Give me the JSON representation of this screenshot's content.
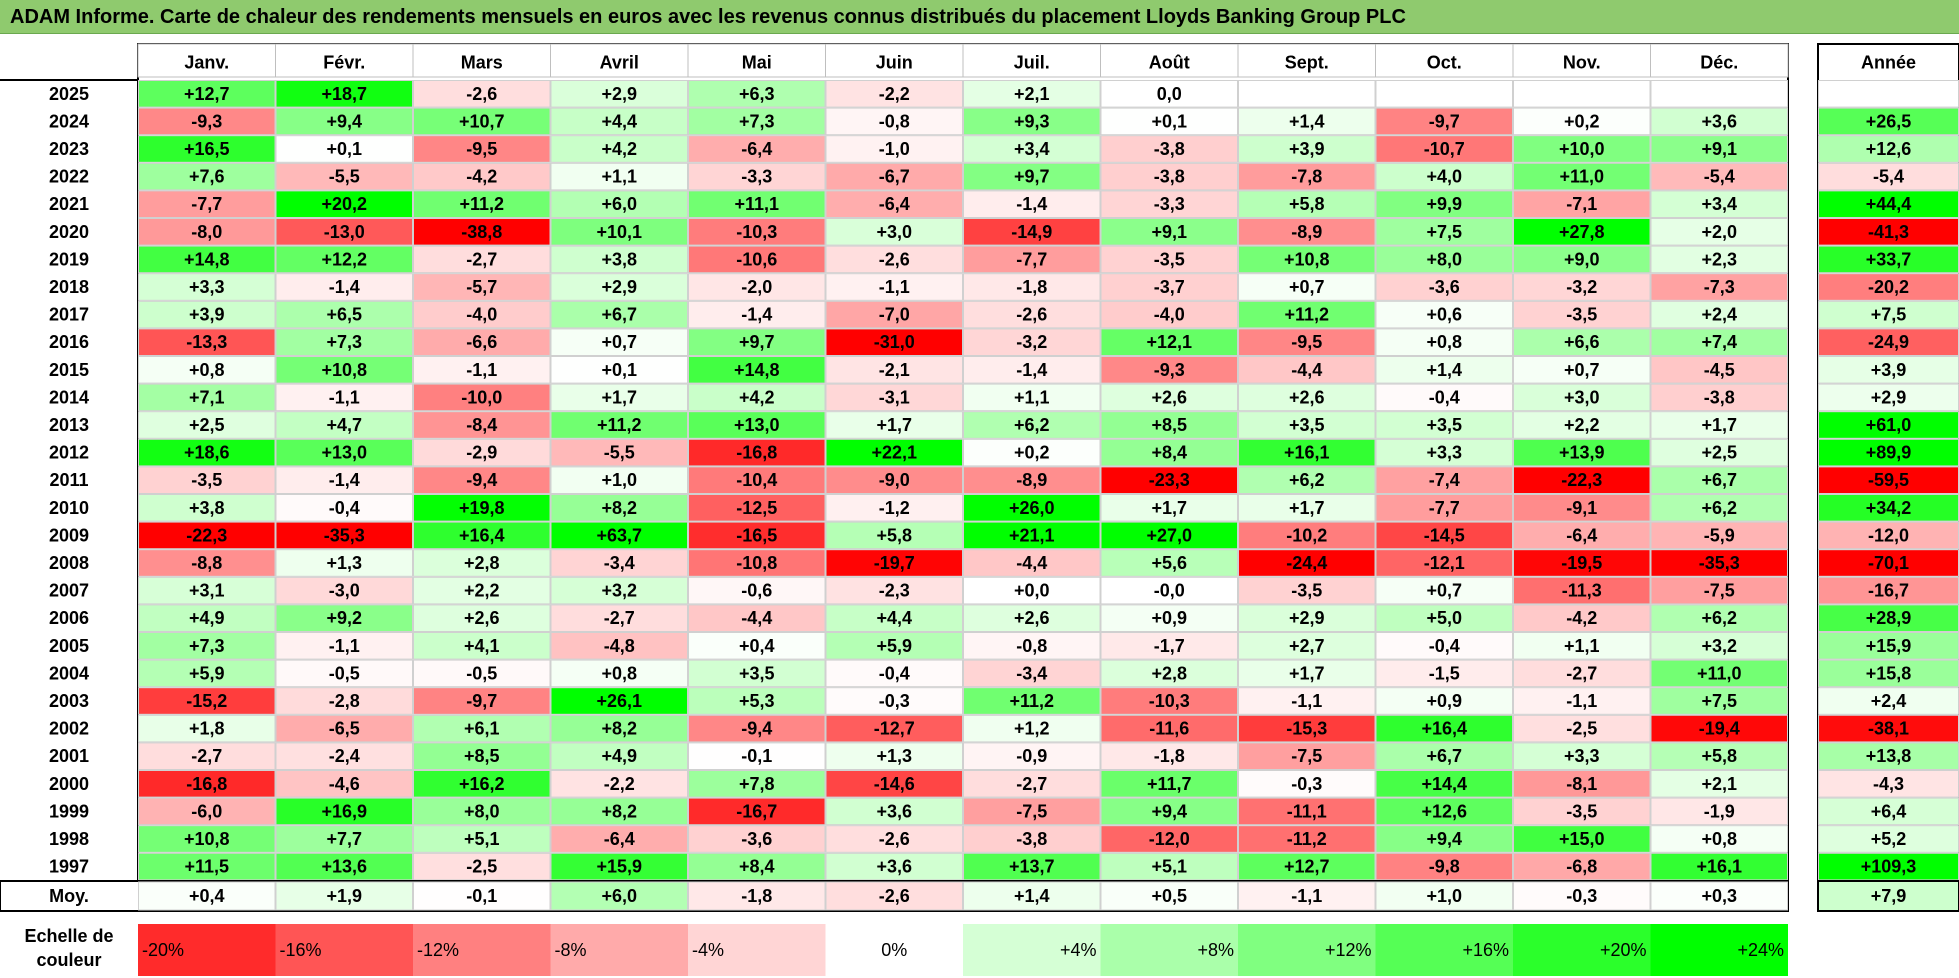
{
  "title": "ADAM Informe. Carte de chaleur des rendements mensuels en euros avec les revenus connus distribués du placement Lloyds Banking Group PLC",
  "scale_label_lines": [
    "Echelle de",
    "couleur"
  ],
  "chart_data": {
    "type": "heatmap",
    "title": "ADAM Informe. Carte de chaleur des rendements mensuels en euros avec les revenus connus distribués du placement Lloyds Banking Group PLC",
    "months": [
      "Janv.",
      "Févr.",
      "Mars",
      "Avril",
      "Mai",
      "Juin",
      "Juil.",
      "Août",
      "Sept.",
      "Oct.",
      "Nov.",
      "Déc."
    ],
    "year_header": "Année",
    "rows": [
      {
        "year": "2025",
        "values": [
          "+12,7",
          "+18,7",
          "-2,6",
          "+2,9",
          "+6,3",
          "-2,2",
          "+2,1",
          "0,0",
          "",
          "",
          "",
          ""
        ],
        "annual": ""
      },
      {
        "year": "2024",
        "values": [
          "-9,3",
          "+9,4",
          "+10,7",
          "+4,4",
          "+7,3",
          "-0,8",
          "+9,3",
          "+0,1",
          "+1,4",
          "-9,7",
          "+0,2",
          "+3,6"
        ],
        "annual": "+26,5"
      },
      {
        "year": "2023",
        "values": [
          "+16,5",
          "+0,1",
          "-9,5",
          "+4,2",
          "-6,4",
          "-1,0",
          "+3,4",
          "-3,8",
          "+3,9",
          "-10,7",
          "+10,0",
          "+9,1"
        ],
        "annual": "+12,6"
      },
      {
        "year": "2022",
        "values": [
          "+7,6",
          "-5,5",
          "-4,2",
          "+1,1",
          "-3,3",
          "-6,7",
          "+9,7",
          "-3,8",
          "-7,8",
          "+4,0",
          "+11,0",
          "-5,4"
        ],
        "annual": "-5,4"
      },
      {
        "year": "2021",
        "values": [
          "-7,7",
          "+20,2",
          "+11,2",
          "+6,0",
          "+11,1",
          "-6,4",
          "-1,4",
          "-3,3",
          "+5,8",
          "+9,9",
          "-7,1",
          "+3,4"
        ],
        "annual": "+44,4"
      },
      {
        "year": "2020",
        "values": [
          "-8,0",
          "-13,0",
          "-38,8",
          "+10,1",
          "-10,3",
          "+3,0",
          "-14,9",
          "+9,1",
          "-8,9",
          "+7,5",
          "+27,8",
          "+2,0"
        ],
        "annual": "-41,3"
      },
      {
        "year": "2019",
        "values": [
          "+14,8",
          "+12,2",
          "-2,7",
          "+3,8",
          "-10,6",
          "-2,6",
          "-7,7",
          "-3,5",
          "+10,8",
          "+8,0",
          "+9,0",
          "+2,3"
        ],
        "annual": "+33,7"
      },
      {
        "year": "2018",
        "values": [
          "+3,3",
          "-1,4",
          "-5,7",
          "+2,9",
          "-2,0",
          "-1,1",
          "-1,8",
          "-3,7",
          "+0,7",
          "-3,6",
          "-3,2",
          "-7,3"
        ],
        "annual": "-20,2"
      },
      {
        "year": "2017",
        "values": [
          "+3,9",
          "+6,5",
          "-4,0",
          "+6,7",
          "-1,4",
          "-7,0",
          "-2,6",
          "-4,0",
          "+11,2",
          "+0,6",
          "-3,5",
          "+2,4"
        ],
        "annual": "+7,5"
      },
      {
        "year": "2016",
        "values": [
          "-13,3",
          "+7,3",
          "-6,6",
          "+0,7",
          "+9,7",
          "-31,0",
          "-3,2",
          "+12,1",
          "-9,5",
          "+0,8",
          "+6,6",
          "+7,4"
        ],
        "annual": "-24,9"
      },
      {
        "year": "2015",
        "values": [
          "+0,8",
          "+10,8",
          "-1,1",
          "+0,1",
          "+14,8",
          "-2,1",
          "-1,4",
          "-9,3",
          "-4,4",
          "+1,4",
          "+0,7",
          "-4,5"
        ],
        "annual": "+3,9"
      },
      {
        "year": "2014",
        "values": [
          "+7,1",
          "-1,1",
          "-10,0",
          "+1,7",
          "+4,2",
          "-3,1",
          "+1,1",
          "+2,6",
          "+2,6",
          "-0,4",
          "+3,0",
          "-3,8"
        ],
        "annual": "+2,9"
      },
      {
        "year": "2013",
        "values": [
          "+2,5",
          "+4,7",
          "-8,4",
          "+11,2",
          "+13,0",
          "+1,7",
          "+6,2",
          "+8,5",
          "+3,5",
          "+3,5",
          "+2,2",
          "+1,7"
        ],
        "annual": "+61,0"
      },
      {
        "year": "2012",
        "values": [
          "+18,6",
          "+13,0",
          "-2,9",
          "-5,5",
          "-16,8",
          "+22,1",
          "+0,2",
          "+8,4",
          "+16,1",
          "+3,3",
          "+13,9",
          "+2,5"
        ],
        "annual": "+89,9"
      },
      {
        "year": "2011",
        "values": [
          "-3,5",
          "-1,4",
          "-9,4",
          "+1,0",
          "-10,4",
          "-9,0",
          "-8,9",
          "-23,3",
          "+6,2",
          "-7,4",
          "-22,3",
          "+6,7"
        ],
        "annual": "-59,5"
      },
      {
        "year": "2010",
        "values": [
          "+3,8",
          "-0,4",
          "+19,8",
          "+8,2",
          "-12,5",
          "-1,2",
          "+26,0",
          "+1,7",
          "+1,7",
          "-7,7",
          "-9,1",
          "+6,2"
        ],
        "annual": "+34,2"
      },
      {
        "year": "2009",
        "values": [
          "-22,3",
          "-35,3",
          "+16,4",
          "+63,7",
          "-16,5",
          "+5,8",
          "+21,1",
          "+27,0",
          "-10,2",
          "-14,5",
          "-6,4",
          "-5,9"
        ],
        "annual": "-12,0"
      },
      {
        "year": "2008",
        "values": [
          "-8,8",
          "+1,3",
          "+2,8",
          "-3,4",
          "-10,8",
          "-19,7",
          "-4,4",
          "+5,6",
          "-24,4",
          "-12,1",
          "-19,5",
          "-35,3"
        ],
        "annual": "-70,1"
      },
      {
        "year": "2007",
        "values": [
          "+3,1",
          "-3,0",
          "+2,2",
          "+3,2",
          "-0,6",
          "-2,3",
          "+0,0",
          "-0,0",
          "-3,5",
          "+0,7",
          "-11,3",
          "-7,5"
        ],
        "annual": "-16,7"
      },
      {
        "year": "2006",
        "values": [
          "+4,9",
          "+9,2",
          "+2,6",
          "-2,7",
          "-4,4",
          "+4,4",
          "+2,6",
          "+0,9",
          "+2,9",
          "+5,0",
          "-4,2",
          "+6,2"
        ],
        "annual": "+28,9"
      },
      {
        "year": "2005",
        "values": [
          "+7,3",
          "-1,1",
          "+4,1",
          "-4,8",
          "+0,4",
          "+5,9",
          "-0,8",
          "-1,7",
          "+2,7",
          "-0,4",
          "+1,1",
          "+3,2"
        ],
        "annual": "+15,9"
      },
      {
        "year": "2004",
        "values": [
          "+5,9",
          "-0,5",
          "-0,5",
          "+0,8",
          "+3,5",
          "-0,4",
          "-3,4",
          "+2,8",
          "+1,7",
          "-1,5",
          "-2,7",
          "+11,0"
        ],
        "annual": "+15,8"
      },
      {
        "year": "2003",
        "values": [
          "-15,2",
          "-2,8",
          "-9,7",
          "+26,1",
          "+5,3",
          "-0,3",
          "+11,2",
          "-10,3",
          "-1,1",
          "+0,9",
          "-1,1",
          "+7,5"
        ],
        "annual": "+2,4"
      },
      {
        "year": "2002",
        "values": [
          "+1,8",
          "-6,5",
          "+6,1",
          "+8,2",
          "-9,4",
          "-12,7",
          "+1,2",
          "-11,6",
          "-15,3",
          "+16,4",
          "-2,5",
          "-19,4"
        ],
        "annual": "-38,1"
      },
      {
        "year": "2001",
        "values": [
          "-2,7",
          "-2,4",
          "+8,5",
          "+4,9",
          "-0,1",
          "+1,3",
          "-0,9",
          "-1,8",
          "-7,5",
          "+6,7",
          "+3,3",
          "+5,8"
        ],
        "annual": "+13,8"
      },
      {
        "year": "2000",
        "values": [
          "-16,8",
          "-4,6",
          "+16,2",
          "-2,2",
          "+7,8",
          "-14,6",
          "-2,7",
          "+11,7",
          "-0,3",
          "+14,4",
          "-8,1",
          "+2,1"
        ],
        "annual": "-4,3"
      },
      {
        "year": "1999",
        "values": [
          "-6,0",
          "+16,9",
          "+8,0",
          "+8,2",
          "-16,7",
          "+3,6",
          "-7,5",
          "+9,4",
          "-11,1",
          "+12,6",
          "-3,5",
          "-1,9"
        ],
        "annual": "+6,4"
      },
      {
        "year": "1998",
        "values": [
          "+10,8",
          "+7,7",
          "+5,1",
          "-6,4",
          "-3,6",
          "-2,6",
          "-3,8",
          "-12,0",
          "-11,2",
          "+9,4",
          "+15,0",
          "+0,8"
        ],
        "annual": "+5,2"
      },
      {
        "year": "1997",
        "values": [
          "+11,5",
          "+13,6",
          "-2,5",
          "+15,9",
          "+8,4",
          "+3,6",
          "+13,7",
          "+5,1",
          "+12,7",
          "-9,8",
          "-6,8",
          "+16,1"
        ],
        "annual": "+109,3"
      }
    ],
    "average": {
      "label": "Moy.",
      "values": [
        "+0,4",
        "+1,9",
        "-0,1",
        "+6,0",
        "-1,8",
        "-2,6",
        "+1,4",
        "+0,5",
        "-1,1",
        "+1,0",
        "-0,3",
        "+0,3"
      ],
      "annual": "+7,9"
    },
    "color_scale": {
      "label": "Echelle de couleur",
      "steps": [
        {
          "label": "-20%",
          "value": -20
        },
        {
          "label": "-16%",
          "value": -16
        },
        {
          "label": "-12%",
          "value": -12
        },
        {
          "label": "-8%",
          "value": -8
        },
        {
          "label": "-4%",
          "value": -4
        },
        {
          "label": "0%",
          "value": 0
        },
        {
          "label": "+4%",
          "value": 4
        },
        {
          "label": "+8%",
          "value": 8
        },
        {
          "label": "+12%",
          "value": 12
        },
        {
          "label": "+16%",
          "value": 16
        },
        {
          "label": "+20%",
          "value": 20
        },
        {
          "label": "+24%",
          "value": 24
        }
      ]
    },
    "colors": {
      "negative_max": "#ff0000",
      "neutral": "#ffffff",
      "positive_max": "#00ff00",
      "title_bar": "#8fca6e"
    }
  }
}
